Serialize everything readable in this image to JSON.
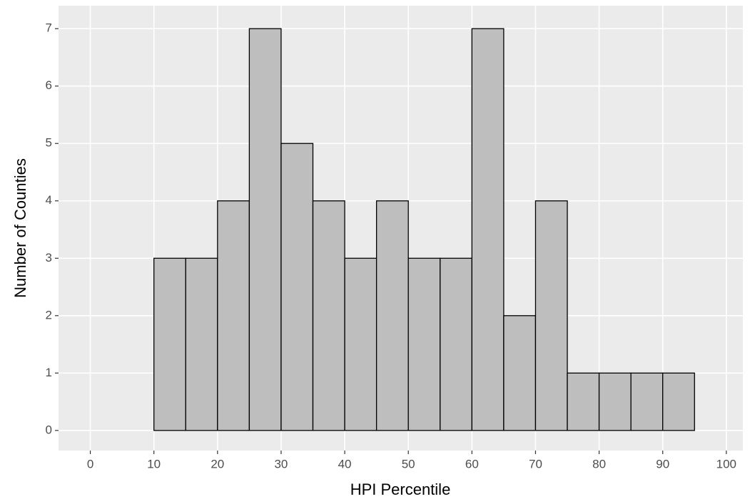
{
  "chart_data": {
    "type": "histogram",
    "x_label": "HPI Percentile",
    "y_label": "Number of Counties",
    "bins": [
      0,
      5,
      10,
      15,
      20,
      25,
      30,
      35,
      40,
      45,
      50,
      55,
      60,
      65,
      70,
      75,
      80,
      85,
      90,
      95,
      100
    ],
    "values": [
      0,
      0,
      3,
      3,
      4,
      7,
      5,
      4,
      3,
      4,
      3,
      3,
      7,
      2,
      4,
      1,
      1,
      1,
      1,
      0
    ],
    "color": "#bebebe",
    "edge_color": "#000000",
    "xlim": [
      -5,
      102.6
    ],
    "ylim": [
      -0.35,
      7.4
    ],
    "xticks": [
      0,
      10,
      20,
      30,
      40,
      50,
      60,
      70,
      80,
      90,
      100
    ],
    "yticks": [
      0,
      1,
      2,
      3,
      4,
      5,
      6,
      7
    ],
    "grid": true
  }
}
